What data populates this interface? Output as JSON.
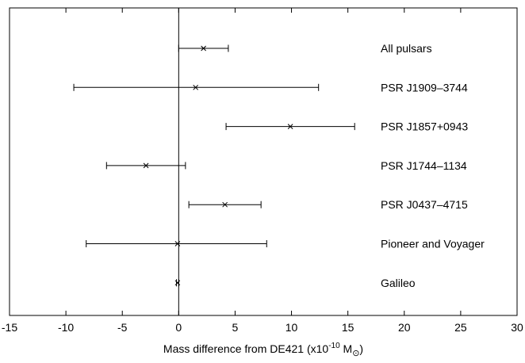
{
  "chart_data": {
    "type": "scatter",
    "title": "",
    "xlabel": {
      "prefix": "Mass difference from DE421 (x10",
      "exponent": "-10",
      "unit": " M",
      "symbol": "⊙",
      "suffix": ")"
    },
    "ylabel": "",
    "xlim": [
      -15,
      30
    ],
    "xticks": [
      -15,
      -10,
      -5,
      0,
      5,
      10,
      15,
      20,
      25,
      30
    ],
    "grid": false,
    "legend": "none",
    "reference_line_x": 0,
    "series": [
      {
        "name": "All pulsars",
        "x": 2.2,
        "xerr_low": 0.0,
        "xerr_high": 4.4
      },
      {
        "name": "PSR J1909–3744",
        "x": 1.5,
        "xerr_low": -9.3,
        "xerr_high": 12.4
      },
      {
        "name": "PSR J1857+0943",
        "x": 9.9,
        "xerr_low": 4.2,
        "xerr_high": 15.6
      },
      {
        "name": "PSR J1744–1134",
        "x": -2.9,
        "xerr_low": -6.4,
        "xerr_high": 0.6
      },
      {
        "name": "PSR J0437–4715",
        "x": 4.1,
        "xerr_low": 0.9,
        "xerr_high": 7.3
      },
      {
        "name": "Pioneer and Voyager",
        "x": -0.1,
        "xerr_low": -8.2,
        "xerr_high": 7.8
      },
      {
        "name": "Galileo",
        "x": -0.1,
        "xerr_low": -0.2,
        "xerr_high": 0.0
      }
    ]
  }
}
